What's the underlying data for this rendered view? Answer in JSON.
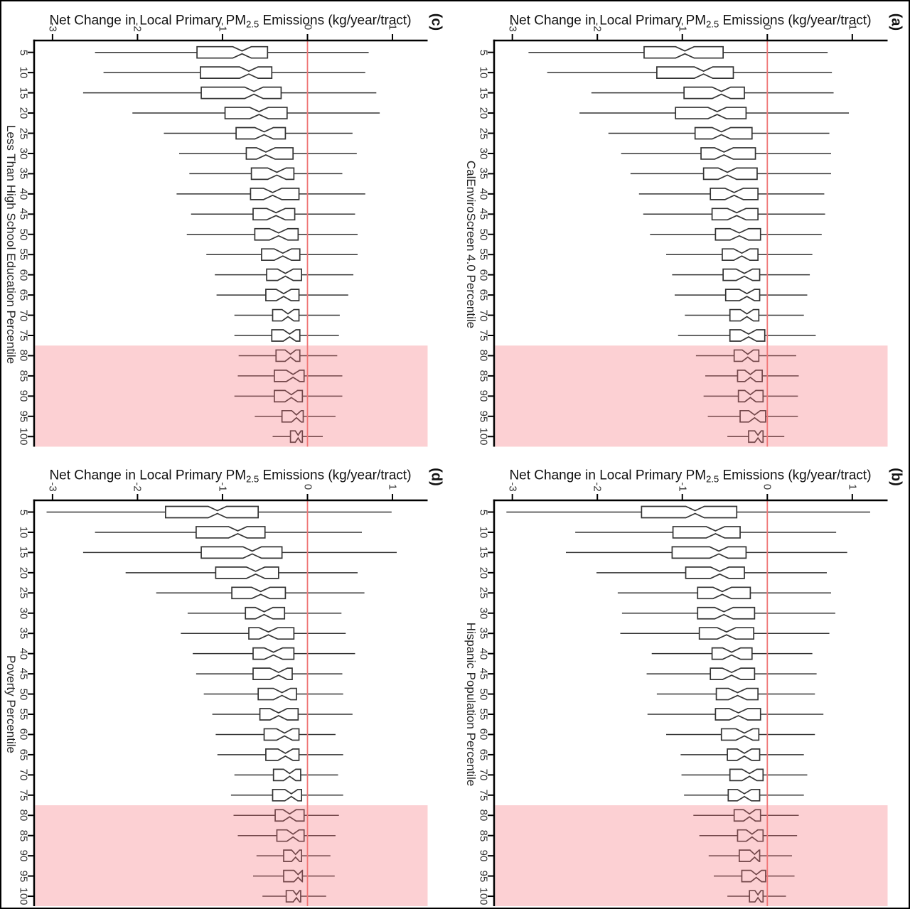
{
  "figure": {
    "panel_title_prefix": "Net Change in Local Primary PM",
    "panel_title_subscript": "2.5",
    "panel_title_suffix": " Emissions (kg/year/tract)",
    "value_axis_ticks": [
      "-3",
      "-2",
      "-1",
      "0",
      "1"
    ],
    "percentile_ticks": [
      "5",
      "10",
      "15",
      "20",
      "25",
      "30",
      "35",
      "40",
      "45",
      "50",
      "55",
      "60",
      "65",
      "70",
      "75",
      "80",
      "85",
      "90",
      "95",
      "100"
    ],
    "colors": {
      "zero_line": "#F07575",
      "highlight_band": "#F67178",
      "highlight_band_opacity": 0.33,
      "box_stroke": "#333333",
      "axis": "#000000"
    }
  },
  "chart_data": [
    {
      "type": "boxplot",
      "notched": true,
      "panel_letter": "(c)",
      "category_axis_label": "Less Than High School Education Percentile",
      "value_axis_label": "Net Change in Local Primary PM2.5 Emissions (kg/year/tract)",
      "value_axis_range": [
        -3.2,
        1.4
      ],
      "zero_line": 0,
      "highlight_band_percentiles": [
        80,
        100
      ],
      "percentiles": [
        5,
        10,
        15,
        20,
        25,
        30,
        35,
        40,
        45,
        50,
        55,
        60,
        65,
        70,
        75,
        80,
        85,
        90,
        95,
        100
      ],
      "whisker_low": [
        -2.5,
        -2.4,
        -2.64,
        -2.06,
        -1.69,
        -1.51,
        -1.39,
        -1.54,
        -1.37,
        -1.42,
        -1.19,
        -1.09,
        -1.07,
        -0.86,
        -0.86,
        -0.81,
        -0.82,
        -0.86,
        -0.62,
        -0.41
      ],
      "q1": [
        -1.3,
        -1.26,
        -1.25,
        -0.97,
        -0.84,
        -0.72,
        -0.66,
        -0.67,
        -0.64,
        -0.62,
        -0.54,
        -0.48,
        -0.49,
        -0.41,
        -0.42,
        -0.37,
        -0.39,
        -0.39,
        -0.3,
        -0.2
      ],
      "median": [
        -0.77,
        -0.69,
        -0.63,
        -0.57,
        -0.51,
        -0.49,
        -0.36,
        -0.41,
        -0.37,
        -0.34,
        -0.29,
        -0.26,
        -0.28,
        -0.23,
        -0.21,
        -0.2,
        -0.17,
        -0.19,
        -0.13,
        -0.11
      ],
      "q3": [
        -0.47,
        -0.42,
        -0.31,
        -0.24,
        -0.26,
        -0.17,
        -0.16,
        -0.1,
        -0.15,
        -0.11,
        -0.09,
        -0.07,
        -0.1,
        -0.1,
        -0.09,
        -0.09,
        -0.04,
        -0.06,
        -0.05,
        -0.06
      ],
      "whisker_high": [
        0.72,
        0.68,
        0.81,
        0.85,
        0.53,
        0.58,
        0.41,
        0.68,
        0.56,
        0.59,
        0.59,
        0.54,
        0.48,
        0.38,
        0.37,
        0.35,
        0.41,
        0.41,
        0.33,
        0.18
      ]
    },
    {
      "type": "boxplot",
      "notched": true,
      "panel_letter": "(a)",
      "category_axis_label": "CalEnviroScreen 4.0 Percentile",
      "value_axis_label": "Net Change in Local Primary PM2.5 Emissions (kg/year/tract)",
      "value_axis_range": [
        -3.2,
        1.4
      ],
      "zero_line": 0,
      "highlight_band_percentiles": [
        80,
        100
      ],
      "percentiles": [
        5,
        10,
        15,
        20,
        25,
        30,
        35,
        40,
        45,
        50,
        55,
        60,
        65,
        70,
        75,
        80,
        85,
        90,
        95,
        100
      ],
      "whisker_low": [
        -2.81,
        -2.59,
        -2.07,
        -2.21,
        -1.87,
        -1.72,
        -1.61,
        -1.51,
        -1.46,
        -1.38,
        -1.19,
        -1.12,
        -1.09,
        -0.97,
        -1.05,
        -0.84,
        -0.73,
        -0.75,
        -0.7,
        -0.47
      ],
      "q1": [
        -1.45,
        -1.3,
        -0.98,
        -1.08,
        -0.85,
        -0.78,
        -0.75,
        -0.67,
        -0.65,
        -0.61,
        -0.53,
        -0.52,
        -0.49,
        -0.44,
        -0.44,
        -0.39,
        -0.35,
        -0.34,
        -0.32,
        -0.22
      ],
      "median": [
        -0.97,
        -0.75,
        -0.54,
        -0.59,
        -0.54,
        -0.51,
        -0.47,
        -0.39,
        -0.36,
        -0.33,
        -0.3,
        -0.27,
        -0.24,
        -0.24,
        -0.22,
        -0.23,
        -0.2,
        -0.2,
        -0.15,
        -0.11
      ],
      "q3": [
        -0.52,
        -0.4,
        -0.27,
        -0.25,
        -0.18,
        -0.14,
        -0.12,
        -0.11,
        -0.11,
        -0.08,
        -0.11,
        -0.09,
        -0.09,
        -0.1,
        -0.03,
        -0.1,
        -0.06,
        -0.05,
        -0.02,
        -0.05
      ],
      "whisker_high": [
        0.71,
        0.76,
        0.78,
        0.96,
        0.73,
        0.75,
        0.75,
        0.67,
        0.68,
        0.64,
        0.53,
        0.5,
        0.47,
        0.43,
        0.57,
        0.34,
        0.37,
        0.36,
        0.36,
        0.2
      ]
    },
    {
      "type": "boxplot",
      "notched": true,
      "panel_letter": "(d)",
      "category_axis_label": "Poverty Percentile",
      "value_axis_label": "Net Change in Local Primary PM2.5 Emissions (kg/year/tract)",
      "value_axis_range": [
        -3.2,
        1.4
      ],
      "zero_line": 0,
      "highlight_band_percentiles": [
        80,
        100
      ],
      "percentiles": [
        5,
        10,
        15,
        20,
        25,
        30,
        35,
        40,
        45,
        50,
        55,
        60,
        65,
        70,
        75,
        80,
        85,
        90,
        95,
        100
      ],
      "whisker_low": [
        -3.07,
        -2.5,
        -2.64,
        -2.14,
        -1.78,
        -1.41,
        -1.49,
        -1.35,
        -1.31,
        -1.22,
        -1.12,
        -1.08,
        -1.06,
        -0.86,
        -0.9,
        -0.87,
        -0.82,
        -0.6,
        -0.64,
        -0.53
      ],
      "q1": [
        -1.67,
        -1.31,
        -1.25,
        -1.08,
        -0.89,
        -0.73,
        -0.69,
        -0.64,
        -0.64,
        -0.58,
        -0.56,
        -0.51,
        -0.49,
        -0.4,
        -0.41,
        -0.38,
        -0.36,
        -0.28,
        -0.28,
        -0.25
      ],
      "median": [
        -1.06,
        -0.82,
        -0.65,
        -0.61,
        -0.55,
        -0.51,
        -0.46,
        -0.4,
        -0.34,
        -0.3,
        -0.34,
        -0.27,
        -0.26,
        -0.21,
        -0.19,
        -0.21,
        -0.17,
        -0.14,
        -0.11,
        -0.13
      ],
      "q3": [
        -0.58,
        -0.5,
        -0.3,
        -0.34,
        -0.26,
        -0.27,
        -0.16,
        -0.16,
        -0.18,
        -0.13,
        -0.11,
        -0.1,
        -0.1,
        -0.08,
        -0.07,
        -0.04,
        -0.04,
        -0.07,
        -0.06,
        -0.08
      ],
      "whisker_high": [
        0.99,
        0.64,
        1.05,
        0.59,
        0.67,
        0.4,
        0.45,
        0.56,
        0.41,
        0.42,
        0.53,
        0.33,
        0.42,
        0.36,
        0.42,
        0.37,
        0.33,
        0.27,
        0.32,
        0.22
      ]
    },
    {
      "type": "boxplot",
      "notched": true,
      "panel_letter": "(b)",
      "category_axis_label": "Hispanic Population Percentile",
      "value_axis_label": "Net Change in Local Primary PM2.5 Emissions (kg/year/tract)",
      "value_axis_range": [
        -3.2,
        1.4
      ],
      "zero_line": 0,
      "highlight_band_percentiles": [
        80,
        100
      ],
      "percentiles": [
        5,
        10,
        15,
        20,
        25,
        30,
        35,
        40,
        45,
        50,
        55,
        60,
        65,
        70,
        75,
        80,
        85,
        90,
        95,
        100
      ],
      "whisker_low": [
        -3.07,
        -2.26,
        -2.37,
        -2.01,
        -1.76,
        -1.71,
        -1.73,
        -1.36,
        -1.42,
        -1.3,
        -1.41,
        -1.19,
        -1.02,
        -1.01,
        -0.98,
        -0.87,
        -0.8,
        -0.69,
        -0.63,
        -0.47
      ],
      "q1": [
        -1.48,
        -1.11,
        -1.12,
        -0.96,
        -0.82,
        -0.82,
        -0.8,
        -0.65,
        -0.67,
        -0.6,
        -0.61,
        -0.54,
        -0.47,
        -0.44,
        -0.46,
        -0.39,
        -0.35,
        -0.33,
        -0.3,
        -0.21
      ],
      "median": [
        -0.85,
        -0.61,
        -0.57,
        -0.56,
        -0.53,
        -0.51,
        -0.48,
        -0.42,
        -0.42,
        -0.35,
        -0.34,
        -0.27,
        -0.27,
        -0.21,
        -0.27,
        -0.21,
        -0.18,
        -0.15,
        -0.13,
        -0.11
      ],
      "q3": [
        -0.36,
        -0.32,
        -0.25,
        -0.27,
        -0.2,
        -0.15,
        -0.16,
        -0.18,
        -0.15,
        -0.11,
        -0.08,
        -0.1,
        -0.09,
        -0.05,
        -0.09,
        -0.08,
        -0.05,
        -0.09,
        -0.02,
        -0.05
      ],
      "whisker_high": [
        1.21,
        0.81,
        0.94,
        0.7,
        0.75,
        0.8,
        0.73,
        0.53,
        0.58,
        0.56,
        0.66,
        0.56,
        0.43,
        0.47,
        0.43,
        0.37,
        0.35,
        0.29,
        0.32,
        0.22
      ]
    }
  ]
}
